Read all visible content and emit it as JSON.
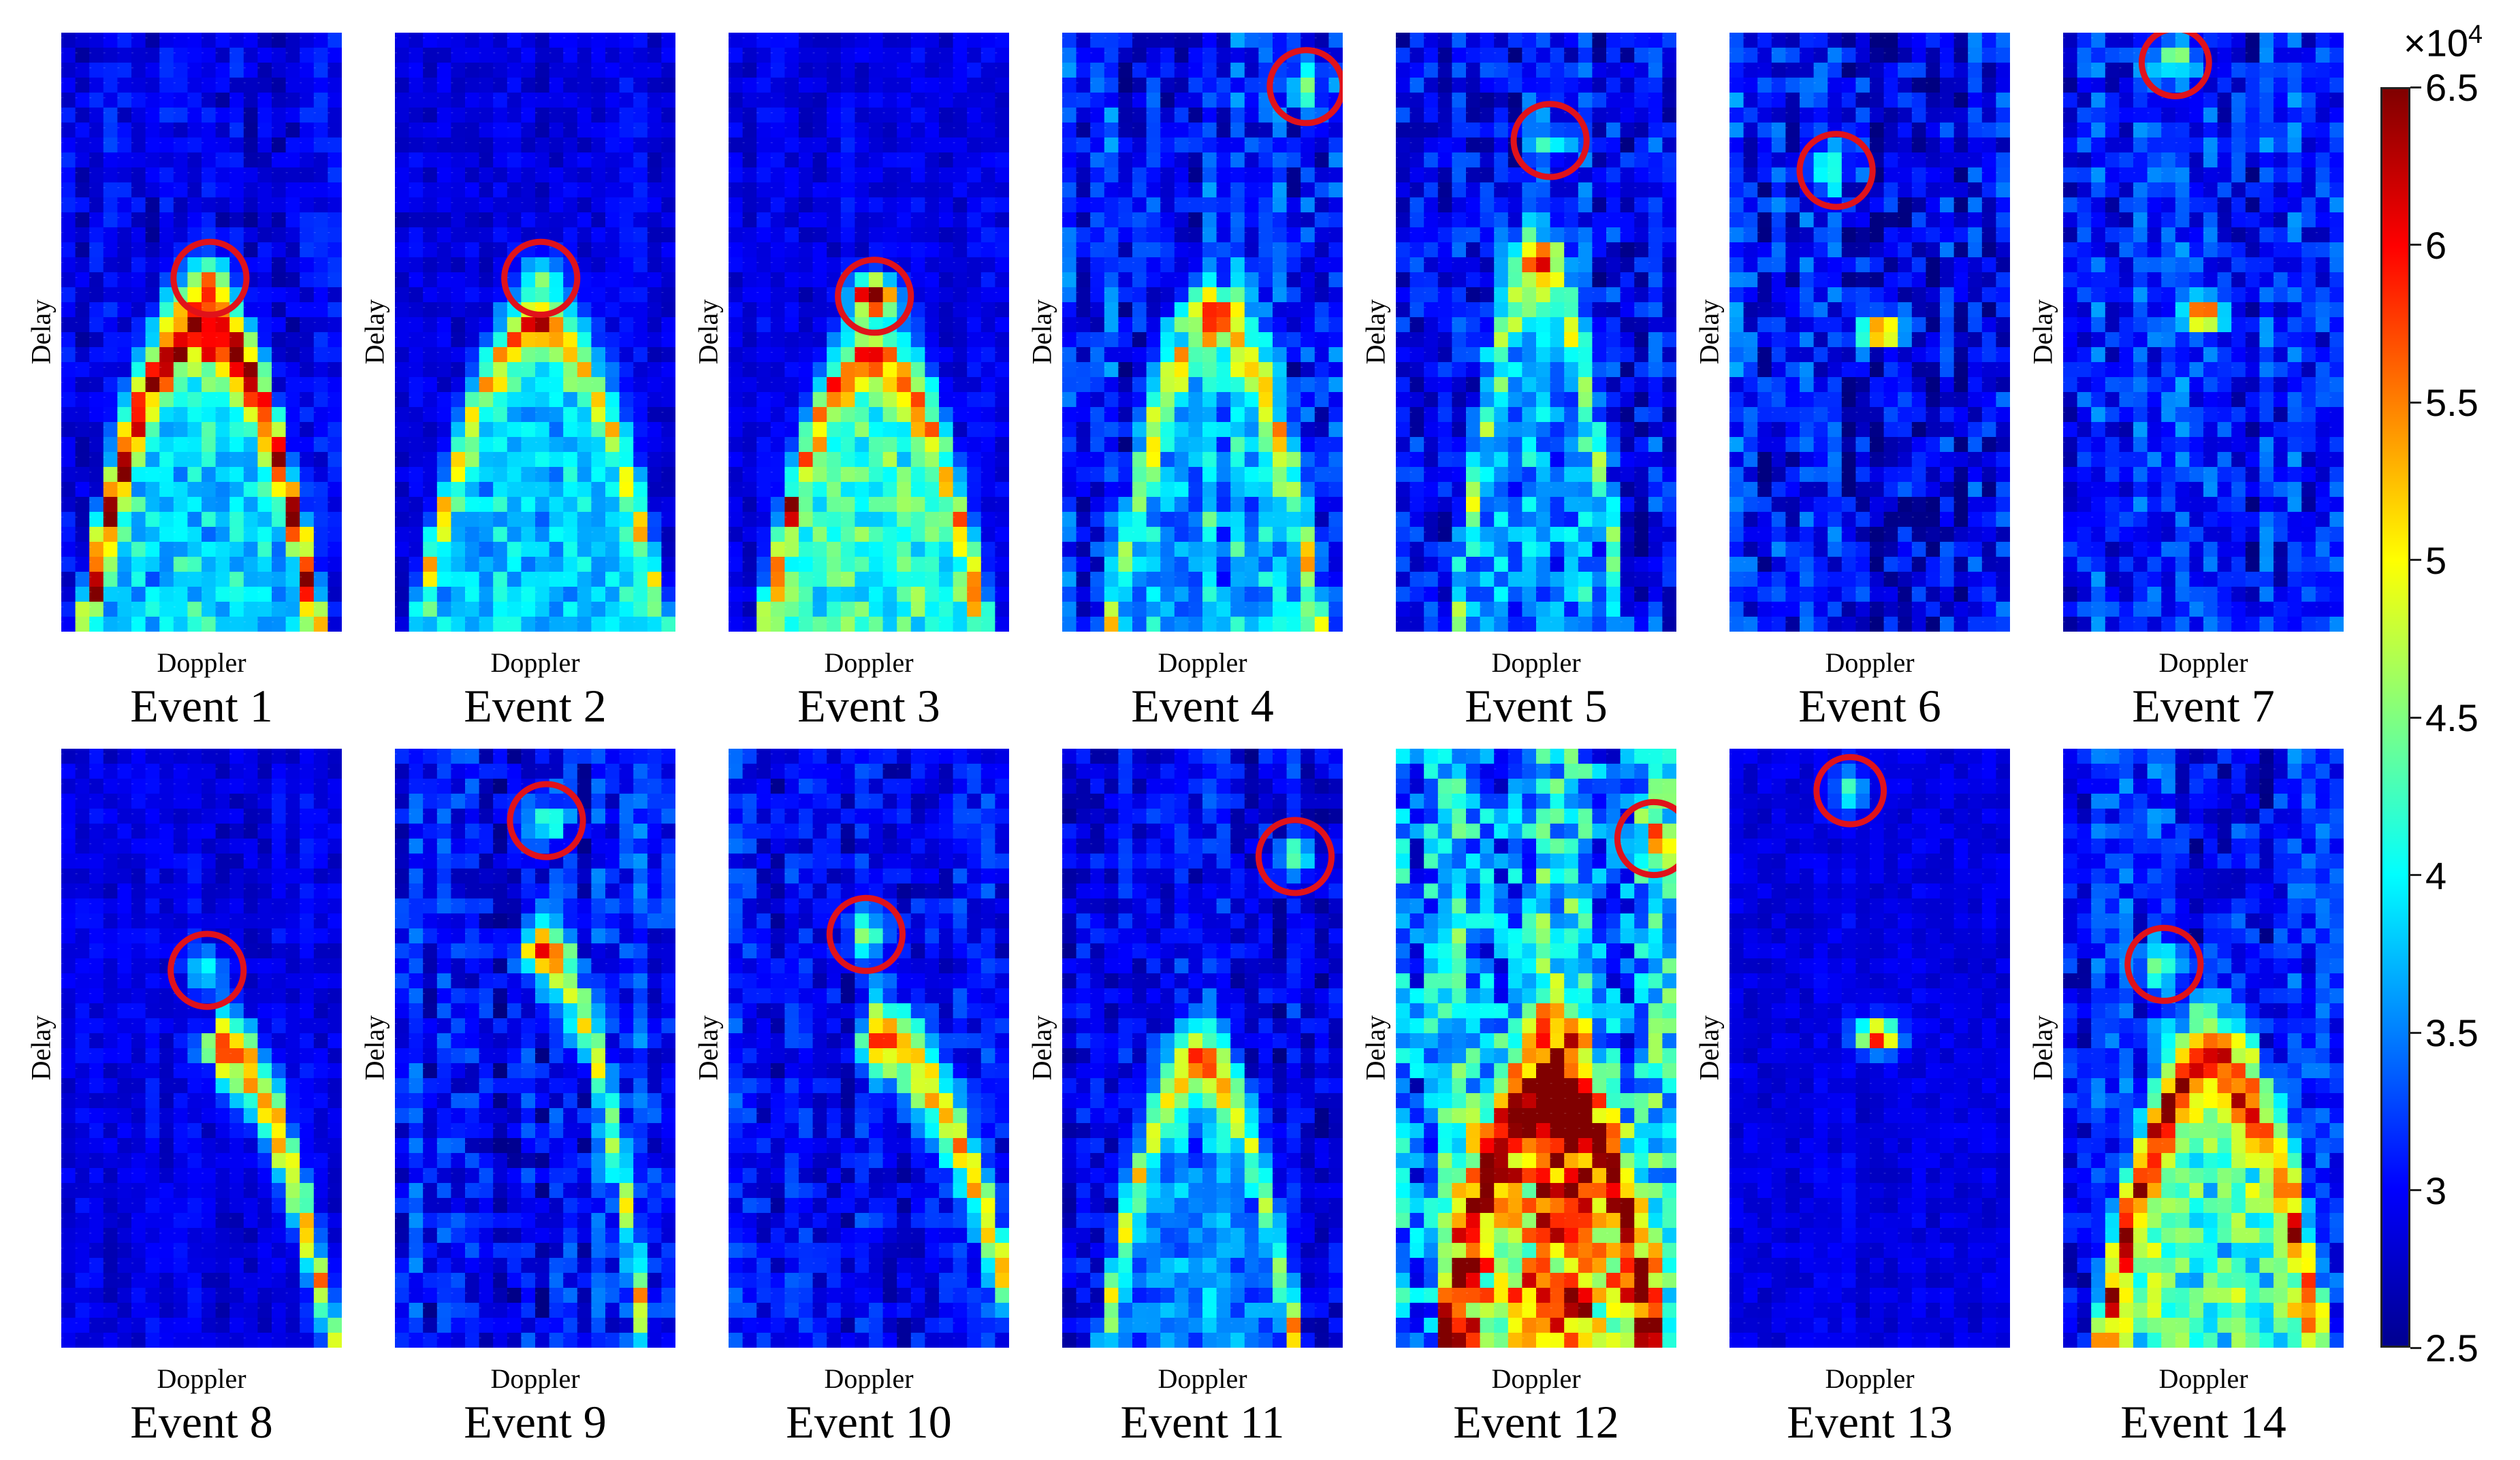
{
  "chart_data": {
    "type": "heatmap",
    "grid": {
      "rows": 40,
      "cols": 20
    },
    "colorbar": {
      "multiplier": "×10",
      "exponent": "4",
      "range": [
        2.5,
        6.5
      ],
      "ticks": [
        "6.5",
        "6",
        "5.5",
        "5",
        "4.5",
        "4",
        "3.5",
        "3",
        "2.5"
      ],
      "tick_values": [
        6.5,
        6,
        5.5,
        5,
        4.5,
        4,
        3.5,
        3,
        2.5
      ],
      "colormap": "jet"
    },
    "marker_color": "#e0121a",
    "panels": [
      {
        "title": "Event 1",
        "xlabel": "Doppler",
        "ylabel": "Delay",
        "background": 0.1,
        "noise": 0.12,
        "parabola": {
          "apex": [
            0.5,
            0.48
          ],
          "width": 0.42,
          "strength": 0.75,
          "thickness": 0.05,
          "fill": 0.25,
          "side": "both"
        },
        "peak": {
          "pos": [
            0.5,
            0.48
          ],
          "value": 0.85
        },
        "marker": {
          "x": 0.53,
          "y": 0.41,
          "r": 0.13
        }
      },
      {
        "title": "Event 2",
        "xlabel": "Doppler",
        "ylabel": "Delay",
        "background": 0.1,
        "noise": 0.08,
        "parabola": {
          "apex": [
            0.52,
            0.48
          ],
          "width": 0.45,
          "strength": 0.35,
          "thickness": 0.05,
          "fill": 0.25,
          "side": "both"
        },
        "peak": {
          "pos": [
            0.52,
            0.49
          ],
          "value": 0.97
        },
        "marker": {
          "x": 0.52,
          "y": 0.41,
          "r": 0.13
        }
      },
      {
        "title": "Event 3",
        "xlabel": "Doppler",
        "ylabel": "Delay",
        "background": 0.1,
        "noise": 0.08,
        "parabola": {
          "apex": [
            0.52,
            0.52
          ],
          "width": 0.4,
          "strength": 0.42,
          "thickness": 0.05,
          "fill": 0.35,
          "side": "both"
        },
        "peak": {
          "pos": [
            0.52,
            0.44
          ],
          "value": 0.97
        },
        "marker": {
          "x": 0.52,
          "y": 0.44,
          "r": 0.13
        }
      },
      {
        "title": "Event 4",
        "xlabel": "Doppler",
        "ylabel": "Delay",
        "background": 0.14,
        "noise": 0.2,
        "parabola": {
          "apex": [
            0.55,
            0.47
          ],
          "width": 0.38,
          "strength": 0.35,
          "thickness": 0.06,
          "fill": 0.18,
          "side": "both"
        },
        "peak": {
          "pos": [
            0.55,
            0.47
          ],
          "value": 0.95
        },
        "marker": {
          "x": 0.87,
          "y": 0.09,
          "r": 0.13
        }
      },
      {
        "title": "Event 5",
        "xlabel": "Doppler",
        "ylabel": "Delay",
        "background": 0.14,
        "noise": 0.2,
        "parabola": {
          "apex": [
            0.51,
            0.38
          ],
          "width": 0.3,
          "strength": 0.3,
          "thickness": 0.06,
          "fill": 0.15,
          "side": "both"
        },
        "peak": {
          "pos": [
            0.51,
            0.38
          ],
          "value": 0.95
        },
        "marker": {
          "x": 0.55,
          "y": 0.18,
          "r": 0.13
        }
      },
      {
        "title": "Event 6",
        "xlabel": "Doppler",
        "ylabel": "Delay",
        "background": 0.12,
        "noise": 0.22,
        "parabola": null,
        "peak": {
          "pos": [
            0.54,
            0.5
          ],
          "value": 0.92
        },
        "marker": {
          "x": 0.38,
          "y": 0.23,
          "r": 0.13
        }
      },
      {
        "title": "Event 7",
        "xlabel": "Doppler",
        "ylabel": "Delay",
        "background": 0.14,
        "noise": 0.2,
        "parabola": null,
        "peak": {
          "pos": [
            0.5,
            0.47
          ],
          "value": 0.9
        },
        "marker": {
          "x": 0.4,
          "y": 0.05,
          "r": 0.12
        }
      },
      {
        "title": "Event 8",
        "xlabel": "Doppler",
        "ylabel": "Delay",
        "background": 0.1,
        "noise": 0.08,
        "parabola": {
          "apex": [
            0.55,
            0.5
          ],
          "width": 0.42,
          "strength": 0.6,
          "thickness": 0.05,
          "fill": 0.0,
          "side": "right"
        },
        "peak": {
          "pos": [
            0.57,
            0.5
          ],
          "value": 0.88
        },
        "marker": {
          "x": 0.52,
          "y": 0.37,
          "r": 0.13
        }
      },
      {
        "title": "Event 9",
        "xlabel": "Doppler",
        "ylabel": "Delay",
        "background": 0.14,
        "noise": 0.18,
        "parabola": {
          "apex": [
            0.52,
            0.34
          ],
          "width": 0.38,
          "strength": 0.45,
          "thickness": 0.05,
          "fill": 0.0,
          "side": "right"
        },
        "peak": {
          "pos": [
            0.52,
            0.34
          ],
          "value": 0.9
        },
        "marker": {
          "x": 0.54,
          "y": 0.12,
          "r": 0.13
        }
      },
      {
        "title": "Event 10",
        "xlabel": "Doppler",
        "ylabel": "Delay",
        "background": 0.12,
        "noise": 0.15,
        "parabola": {
          "apex": [
            0.5,
            0.48
          ],
          "width": 0.55,
          "strength": 0.55,
          "thickness": 0.05,
          "fill": 0.0,
          "side": "right"
        },
        "peak": {
          "pos": [
            0.54,
            0.49
          ],
          "value": 0.85
        },
        "marker": {
          "x": 0.49,
          "y": 0.31,
          "r": 0.13
        }
      },
      {
        "title": "Event 11",
        "xlabel": "Doppler",
        "ylabel": "Delay",
        "background": 0.12,
        "noise": 0.15,
        "parabola": {
          "apex": [
            0.49,
            0.52
          ],
          "width": 0.35,
          "strength": 0.4,
          "thickness": 0.05,
          "fill": 0.15,
          "side": "both"
        },
        "peak": {
          "pos": [
            0.49,
            0.52
          ],
          "value": 0.9
        },
        "marker": {
          "x": 0.83,
          "y": 0.18,
          "r": 0.13
        }
      },
      {
        "title": "Event 12",
        "xlabel": "Doppler",
        "ylabel": "Delay",
        "background": 0.3,
        "noise": 0.35,
        "parabola": {
          "apex": [
            0.55,
            0.53
          ],
          "width": 0.4,
          "strength": 0.5,
          "thickness": 0.08,
          "fill": 0.45,
          "side": "both"
        },
        "peak": {
          "pos": [
            0.58,
            0.55
          ],
          "value": 0.8
        },
        "marker": {
          "x": 0.92,
          "y": 0.15,
          "r": 0.13
        }
      },
      {
        "title": "Event 13",
        "xlabel": "Doppler",
        "ylabel": "Delay",
        "background": 0.1,
        "noise": 0.06,
        "parabola": null,
        "peak": {
          "pos": [
            0.53,
            0.48
          ],
          "value": 0.93
        },
        "marker": {
          "x": 0.43,
          "y": 0.07,
          "r": 0.12
        }
      },
      {
        "title": "Event 14",
        "xlabel": "Doppler",
        "ylabel": "Delay",
        "background": 0.14,
        "noise": 0.18,
        "parabola": {
          "apex": [
            0.53,
            0.5
          ],
          "width": 0.4,
          "strength": 0.55,
          "thickness": 0.06,
          "fill": 0.35,
          "side": "both"
        },
        "peak": {
          "pos": [
            0.53,
            0.5
          ],
          "value": 0.85
        },
        "marker": {
          "x": 0.36,
          "y": 0.36,
          "r": 0.13
        }
      }
    ]
  }
}
